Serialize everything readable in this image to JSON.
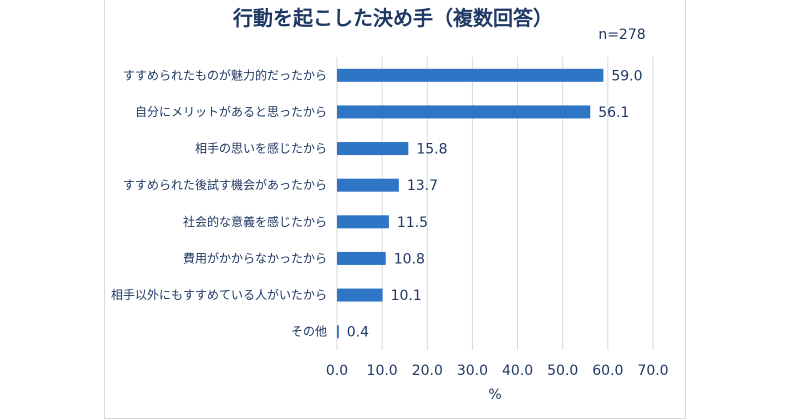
{
  "chart_data": {
    "type": "bar",
    "orientation": "horizontal",
    "title": "行動を起こした決め手（複数回答）",
    "note": "n=278",
    "categories": [
      "すすめられたものが魅力的だったから",
      "自分にメリットがあると思ったから",
      "相手の思いを感じたから",
      "すすめられた後試す機会があったから",
      "社会的な意義を感じたから",
      "費用がかからなかったから",
      "相手以外にもすすめている人がいたから",
      "その他"
    ],
    "values": [
      59.0,
      56.1,
      15.8,
      13.7,
      11.5,
      10.8,
      10.1,
      0.4
    ],
    "value_labels": [
      "59.0",
      "56.1",
      "15.8",
      "13.7",
      "11.5",
      "10.8",
      "10.1",
      "0.4"
    ],
    "xlim": [
      0,
      70
    ],
    "xticks": [
      "0.0",
      "10.0",
      "20.0",
      "30.0",
      "40.0",
      "50.0",
      "60.0",
      "70.0"
    ],
    "xlabel": "%",
    "bar_color": "#2e75c6",
    "grid": true
  }
}
